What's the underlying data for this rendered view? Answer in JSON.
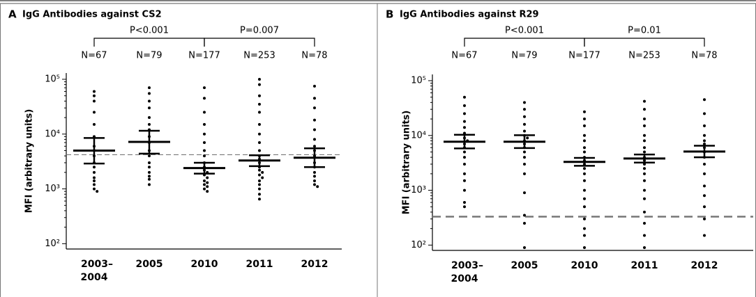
{
  "chart_data": [
    {
      "type": "dot_plot",
      "panel": "A",
      "title": "IgG Antibodies against CS2",
      "ylabel": "MFI (arbitrary units)",
      "categories": [
        "2003–2004",
        "2005",
        "2010",
        "2011",
        "2012"
      ],
      "n_labels": [
        "N=67",
        "N=79",
        "N=177",
        "N=253",
        "N=78"
      ],
      "log_y": true,
      "ylim": [
        80,
        130000
      ],
      "yticks": [
        {
          "value": 100,
          "label": "10²"
        },
        {
          "value": 1000,
          "label": "10³"
        },
        {
          "value": 10000,
          "label": "10⁴"
        },
        {
          "value": 100000,
          "label": "10⁵"
        }
      ],
      "geomean": [
        5000,
        7200,
        2400,
        3300,
        3700
      ],
      "ci_low": [
        2900,
        4400,
        1900,
        2600,
        2500
      ],
      "ci_high": [
        8500,
        11500,
        3000,
        4100,
        5500
      ],
      "cutoff": 4200,
      "comparisons": [
        {
          "label": "P<0.001",
          "from": 0,
          "to": 2
        },
        {
          "label": "P=0.007",
          "from": 2,
          "to": 4
        }
      ],
      "points": [
        [
          60000,
          50000,
          40000,
          25000,
          15000,
          9000,
          6000,
          5000,
          4000,
          3000,
          2500,
          2000,
          1600,
          1400,
          1200,
          1000,
          900
        ],
        [
          70000,
          55000,
          40000,
          30000,
          20000,
          15000,
          12000,
          9000,
          7000,
          5000,
          4000,
          3000,
          2500,
          2000,
          1700,
          1500,
          1200
        ],
        [
          70000,
          45000,
          25000,
          15000,
          10000,
          7000,
          5000,
          4000,
          3000,
          2500,
          2200,
          2000,
          1800,
          1600,
          1400,
          1300,
          1200,
          1100,
          1000,
          900
        ],
        [
          100000,
          80000,
          50000,
          35000,
          25000,
          15000,
          10000,
          7000,
          5000,
          4000,
          3500,
          3000,
          2500,
          2200,
          2000,
          1800,
          1600,
          1400,
          1200,
          1000,
          800,
          650
        ],
        [
          75000,
          45000,
          30000,
          18000,
          12000,
          8000,
          6000,
          5000,
          4000,
          3000,
          2500,
          2000,
          1700,
          1400,
          1200,
          1100
        ]
      ]
    },
    {
      "type": "dot_plot",
      "panel": "B",
      "title": "IgG Antibodies against R29",
      "ylabel": "MFI (arbitrary units)",
      "categories": [
        "2003–2004",
        "2005",
        "2010",
        "2011",
        "2012"
      ],
      "n_labels": [
        "N=67",
        "N=79",
        "N=177",
        "N=253",
        "N=78"
      ],
      "log_y": true,
      "ylim": [
        80,
        130000
      ],
      "yticks": [
        {
          "value": 100,
          "label": "10²"
        },
        {
          "value": 1000,
          "label": "10³"
        },
        {
          "value": 10000,
          "label": "10⁴"
        },
        {
          "value": 100000,
          "label": "10⁵"
        }
      ],
      "geomean": [
        7700,
        7700,
        3300,
        3800,
        5100
      ],
      "ci_low": [
        5800,
        5900,
        2800,
        3200,
        4000
      ],
      "ci_high": [
        10300,
        10100,
        3900,
        4500,
        6500
      ],
      "cutoff": 330,
      "comparisons": [
        {
          "label": "P<0.001",
          "from": 0,
          "to": 2
        },
        {
          "label": "P=0.01",
          "from": 2,
          "to": 4
        }
      ],
      "points": [
        [
          50000,
          35000,
          25000,
          18000,
          14000,
          11000,
          9000,
          8000,
          7000,
          6000,
          5000,
          4000,
          3000,
          2000,
          1500,
          1000,
          600,
          500
        ],
        [
          40000,
          30000,
          22000,
          16000,
          12000,
          10000,
          9000,
          8000,
          7000,
          6000,
          5000,
          4000,
          3000,
          2000,
          900,
          350,
          250,
          90
        ],
        [
          27000,
          20000,
          15000,
          10000,
          8000,
          6000,
          5000,
          4000,
          3500,
          3000,
          2500,
          2000,
          1500,
          1000,
          700,
          500,
          300,
          200,
          150,
          90
        ],
        [
          42000,
          30000,
          20000,
          15000,
          10000,
          8000,
          6000,
          5000,
          4000,
          3500,
          3000,
          2500,
          2000,
          1500,
          1000,
          700,
          400,
          250,
          150,
          90
        ],
        [
          45000,
          25000,
          15000,
          10000,
          8000,
          7000,
          6000,
          5000,
          4000,
          3000,
          2000,
          1200,
          800,
          500,
          300,
          150
        ]
      ]
    }
  ]
}
